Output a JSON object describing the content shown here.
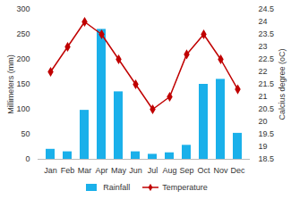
{
  "chart_data": {
    "type": "bar",
    "categories": [
      "Jan",
      "Feb",
      "Mar",
      "Apr",
      "May",
      "Jun",
      "Jul",
      "Aug",
      "Sep",
      "Oct",
      "Nov",
      "Dec"
    ],
    "series": [
      {
        "name": "Rainfall",
        "type": "bar",
        "color": "#1ab0ea",
        "values": [
          20,
          15,
          98,
          260,
          135,
          15,
          10,
          13,
          28,
          150,
          160,
          52
        ]
      },
      {
        "name": "Temperature",
        "type": "line",
        "axis": "y2",
        "color": "#c00000",
        "marker": "diamond",
        "values": [
          22,
          23,
          24,
          23.5,
          22.5,
          21.5,
          20.5,
          21,
          22.7,
          23.5,
          22.5,
          21.3
        ]
      }
    ],
    "ylabel": "Millimeters (mm)",
    "y2label": "Calcius degree (oC)",
    "ylim": [
      0,
      300
    ],
    "yticks": [
      0,
      50,
      100,
      150,
      200,
      250,
      300
    ],
    "y2lim": [
      18.5,
      24.5
    ],
    "y2ticks": [
      18.5,
      19,
      19.5,
      20,
      20.5,
      21,
      21.5,
      22,
      22.5,
      23,
      23.5,
      24,
      24.5
    ],
    "legend": "bottom"
  }
}
